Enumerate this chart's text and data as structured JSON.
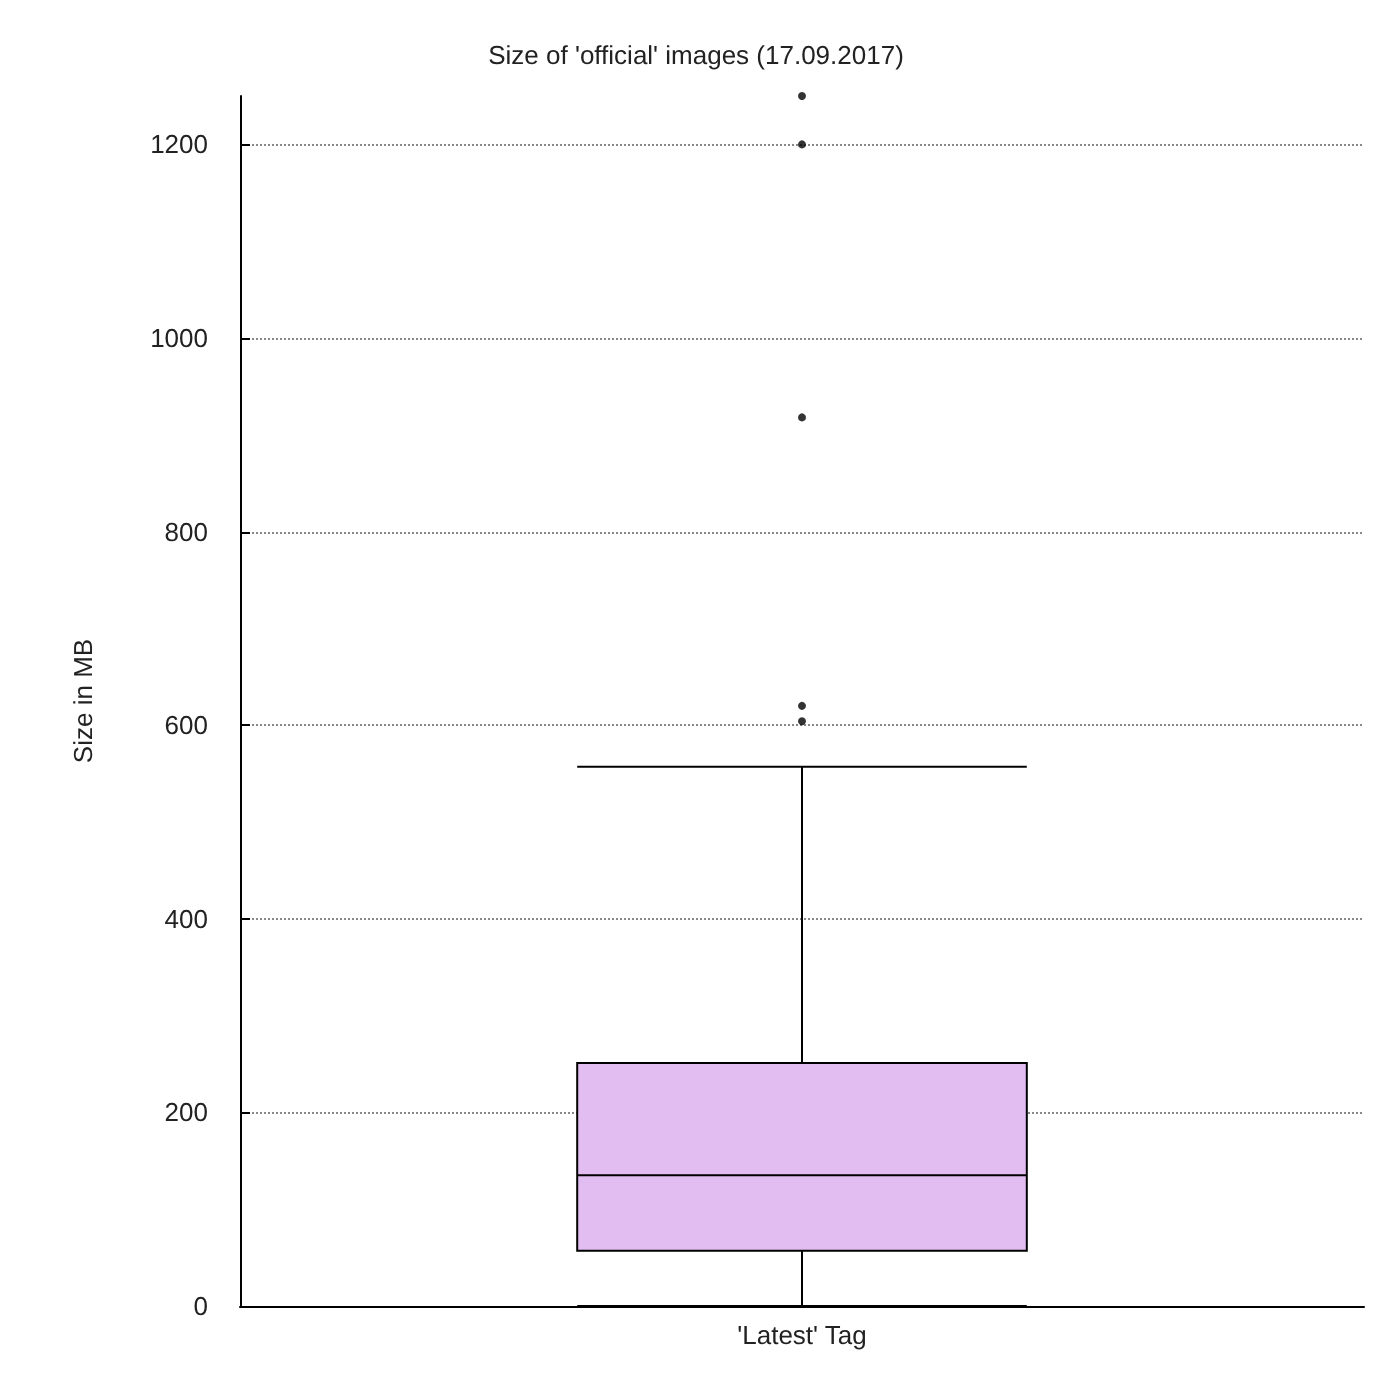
{
  "chart_data": {
    "type": "box",
    "title": "Size of 'official' images (17.09.2017)",
    "ylabel": "Size in MB",
    "categories": [
      "'Latest' Tag"
    ],
    "series": [
      {
        "color": "#e2bdf2",
        "boxes": [
          {
            "low": 0,
            "q1": 57,
            "median": 135,
            "q3": 251,
            "high": 557,
            "outliers": [
              604,
              620,
              918,
              1200,
              1250
            ]
          }
        ]
      }
    ],
    "ylim": [
      0,
      1250
    ],
    "yticks": [
      0,
      200,
      400,
      600,
      800,
      1000,
      1200
    ],
    "grid": "y"
  }
}
